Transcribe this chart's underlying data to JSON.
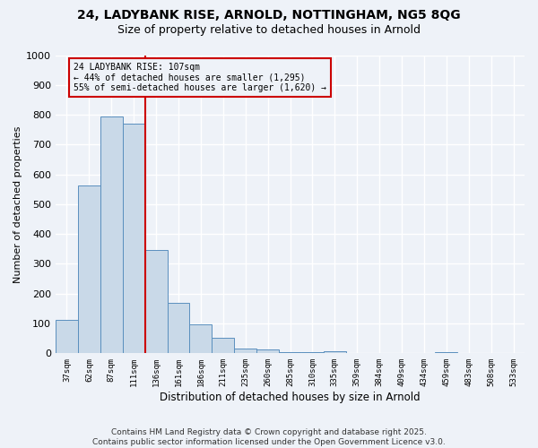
{
  "title_line1": "24, LADYBANK RISE, ARNOLD, NOTTINGHAM, NG5 8QG",
  "title_line2": "Size of property relative to detached houses in Arnold",
  "xlabel": "Distribution of detached houses by size in Arnold",
  "ylabel": "Number of detached properties",
  "bar_values": [
    112,
    562,
    793,
    769,
    348,
    168,
    98,
    52,
    16,
    12,
    5,
    5,
    8,
    2,
    1,
    1,
    0,
    3,
    0,
    0,
    2
  ],
  "x_tick_labels": [
    "37sqm",
    "62sqm",
    "87sqm",
    "111sqm",
    "136sqm",
    "161sqm",
    "186sqm",
    "211sqm",
    "235sqm",
    "260sqm",
    "285sqm",
    "310sqm",
    "335sqm",
    "359sqm",
    "384sqm",
    "409sqm",
    "434sqm",
    "459sqm",
    "483sqm",
    "508sqm",
    "533sqm"
  ],
  "bar_color": "#c9d9e8",
  "bar_edge_color": "#5a8fbe",
  "vline_x": 3.5,
  "vline_color": "#cc0000",
  "annotation_text": "24 LADYBANK RISE: 107sqm\n← 44% of detached houses are smaller (1,295)\n55% of semi-detached houses are larger (1,620) →",
  "annotation_box_color": "#cc0000",
  "ylim": [
    0,
    1000
  ],
  "yticks": [
    0,
    100,
    200,
    300,
    400,
    500,
    600,
    700,
    800,
    900,
    1000
  ],
  "background_color": "#eef2f8",
  "grid_color": "#ffffff",
  "footer_line1": "Contains HM Land Registry data © Crown copyright and database right 2025.",
  "footer_line2": "Contains public sector information licensed under the Open Government Licence v3.0."
}
